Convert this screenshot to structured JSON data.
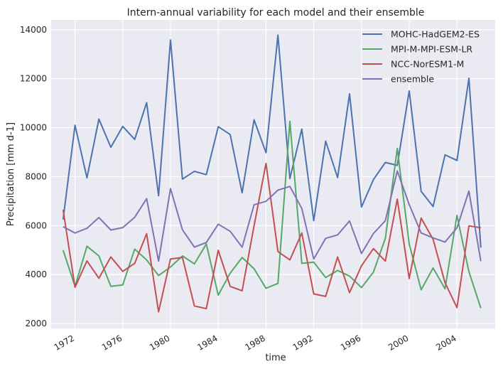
{
  "chart_data": {
    "type": "line",
    "title": "Intern-annual variability for each model and their ensemble",
    "xlabel": "time",
    "ylabel": "Precipitation [mm d-1]",
    "xlim": [
      1970,
      2007.2
    ],
    "ylim": [
      1800,
      14400
    ],
    "x_ticks": [
      1972,
      1976,
      1980,
      1984,
      1988,
      1992,
      1996,
      2000,
      2004
    ],
    "y_ticks": [
      2000,
      4000,
      6000,
      8000,
      10000,
      12000,
      14000
    ],
    "x_tick_labels": [
      "1972",
      "1976",
      "1980",
      "1984",
      "1988",
      "1992",
      "1996",
      "2000",
      "2004"
    ],
    "y_tick_labels": [
      "2000",
      "4000",
      "6000",
      "8000",
      "10000",
      "12000",
      "14000"
    ],
    "grid": true,
    "legend_position": "top-right",
    "x": [
      1971,
      1972,
      1973,
      1974,
      1975,
      1976,
      1977,
      1978,
      1979,
      1980,
      1981,
      1982,
      1983,
      1984,
      1985,
      1986,
      1987,
      1988,
      1989,
      1990,
      1991,
      1992,
      1993,
      1994,
      1995,
      1996,
      1997,
      1998,
      1999,
      2000,
      2001,
      2002,
      2003,
      2004,
      2005,
      2006
    ],
    "series": [
      {
        "name": "MOHC-HadGEM2-ES",
        "color": "#4c72b0",
        "values": [
          6250,
          10100,
          7950,
          10350,
          9200,
          10050,
          9520,
          11020,
          7220,
          13580,
          7900,
          8220,
          8080,
          10040,
          9720,
          7340,
          10320,
          8980,
          13780,
          7920,
          9940,
          6200,
          9450,
          7960,
          11380,
          6760,
          7880,
          8580,
          8460,
          11500,
          7400,
          6780,
          8890,
          8660,
          12020,
          5100
        ]
      },
      {
        "name": "MPI-M-MPI-ESM-LR",
        "color": "#55a868",
        "values": [
          5000,
          3520,
          5160,
          4760,
          3520,
          3580,
          5040,
          4600,
          3960,
          4310,
          4760,
          4440,
          5250,
          3160,
          4060,
          4700,
          4240,
          3440,
          3640,
          10260,
          4460,
          4510,
          3880,
          4170,
          3940,
          3470,
          4100,
          5480,
          9150,
          5250,
          3380,
          4270,
          3420,
          6420,
          4120,
          2630
        ]
      },
      {
        "name": "NCC-NorESM1-M",
        "color": "#c44e52",
        "values": [
          6650,
          3480,
          4560,
          3850,
          4720,
          4130,
          4460,
          5670,
          2480,
          4640,
          4700,
          2720,
          2610,
          4990,
          3520,
          3340,
          5990,
          8540,
          4940,
          4600,
          5700,
          3210,
          3110,
          4720,
          3260,
          4360,
          5060,
          4550,
          7080,
          3840,
          6310,
          5440,
          3670,
          2650,
          5990,
          5910
        ]
      },
      {
        "name": "ensemble",
        "color": "#8172b2",
        "values": [
          5960,
          5700,
          5890,
          6330,
          5820,
          5920,
          6340,
          7100,
          4550,
          7510,
          5830,
          5120,
          5310,
          6060,
          5770,
          5120,
          6850,
          6990,
          7450,
          7600,
          6700,
          4640,
          5480,
          5620,
          6190,
          4860,
          5680,
          6200,
          8230,
          6860,
          5700,
          5500,
          5330,
          5910,
          7410,
          4550
        ]
      }
    ]
  }
}
